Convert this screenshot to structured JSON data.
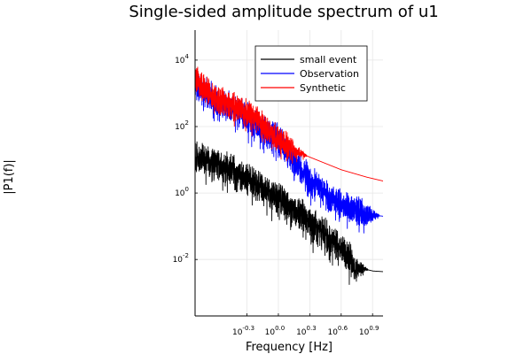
{
  "chart_data": {
    "type": "line",
    "title": "Single-sided amplitude spectrum of u1",
    "xlabel": "Frequency [Hz]",
    "ylabel": "|P1(f)|",
    "x_scale": "log10",
    "y_scale": "log10",
    "xlim": [
      0.16,
      10.0
    ],
    "ylim": [
      0.0002,
      80000
    ],
    "x_ticks": [
      {
        "value": 0.5012,
        "base": "10",
        "exp": "-0.3"
      },
      {
        "value": 1.0,
        "base": "10",
        "exp": "0.0"
      },
      {
        "value": 1.9953,
        "base": "10",
        "exp": "0.3"
      },
      {
        "value": 3.9811,
        "base": "10",
        "exp": "0.6"
      },
      {
        "value": 7.9433,
        "base": "10",
        "exp": "0.9"
      }
    ],
    "y_ticks": [
      {
        "value": 0.01,
        "base": "10",
        "exp": "-2"
      },
      {
        "value": 1,
        "base": "10",
        "exp": "0"
      },
      {
        "value": 100,
        "base": "10",
        "exp": "2"
      },
      {
        "value": 10000,
        "base": "10",
        "exp": "4"
      }
    ],
    "grid": true,
    "legend_position": "top-right",
    "series": [
      {
        "name": "small event",
        "color": "#000000",
        "trend": [
          [
            0.16,
            15
          ],
          [
            0.25,
            8
          ],
          [
            0.4,
            4
          ],
          [
            0.6,
            1.8
          ],
          [
            1.0,
            0.8
          ],
          [
            1.5,
            0.3
          ],
          [
            2.5,
            0.08
          ],
          [
            4.0,
            0.02
          ],
          [
            5.5,
            0.006
          ],
          [
            8.0,
            0.0045
          ],
          [
            10.0,
            0.0043
          ]
        ],
        "noise_decades": 0.55,
        "noise_end_hz": 4.8
      },
      {
        "name": "Observation",
        "color": "#0000ff",
        "trend": [
          [
            0.16,
            2000
          ],
          [
            0.25,
            600
          ],
          [
            0.4,
            300
          ],
          [
            0.6,
            120
          ],
          [
            1.0,
            40
          ],
          [
            1.5,
            8
          ],
          [
            2.0,
            2.5
          ],
          [
            3.0,
            0.8
          ],
          [
            4.5,
            0.4
          ],
          [
            6.0,
            0.25
          ],
          [
            10.0,
            0.2
          ]
        ],
        "noise_decades": 0.5,
        "noise_end_hz": 6.2
      },
      {
        "name": "Synthetic",
        "color": "#ff0000",
        "trend": [
          [
            0.16,
            3000
          ],
          [
            0.25,
            700
          ],
          [
            0.4,
            400
          ],
          [
            0.6,
            200
          ],
          [
            0.8,
            80
          ],
          [
            1.0,
            40
          ],
          [
            1.3,
            22
          ],
          [
            2.0,
            12
          ],
          [
            4.0,
            5
          ],
          [
            7.0,
            3
          ],
          [
            10.0,
            2.3
          ]
        ],
        "noise_decades": 0.45,
        "noise_end_hz": 1.25
      }
    ]
  }
}
